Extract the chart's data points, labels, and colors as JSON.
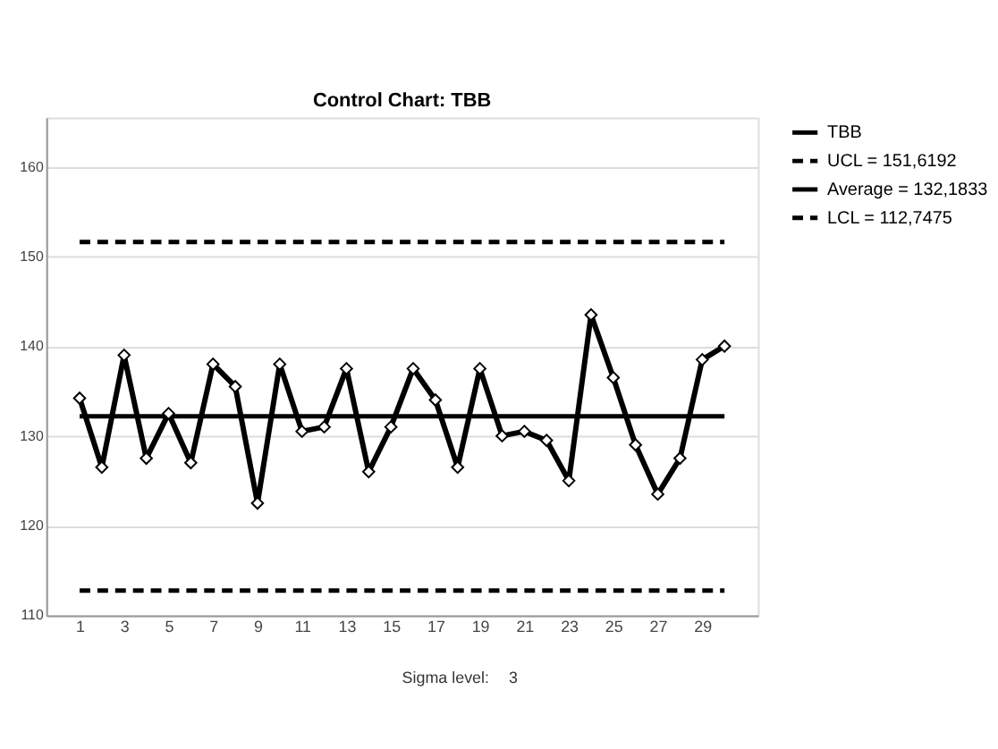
{
  "chart_data": {
    "type": "line",
    "title": "Control Chart: TBB",
    "x": [
      1,
      2,
      3,
      4,
      5,
      6,
      7,
      8,
      9,
      10,
      11,
      12,
      13,
      14,
      15,
      16,
      17,
      18,
      19,
      20,
      21,
      22,
      23,
      24,
      25,
      26,
      27,
      28,
      29,
      30
    ],
    "series": [
      {
        "name": "TBB",
        "color": "#000000",
        "values": [
          134.2,
          126.5,
          139,
          127.5,
          132.5,
          127,
          138,
          135.5,
          122.5,
          138,
          130.5,
          131,
          137.5,
          126,
          131,
          137.5,
          134,
          126.5,
          137.5,
          130,
          130.5,
          129.5,
          125,
          143.5,
          136.5,
          129,
          123.5,
          127.5,
          138.5,
          140
        ]
      }
    ],
    "ref_lines": [
      {
        "axis": "y",
        "value": 151.6192,
        "label": "UCL = 151,6192",
        "color": "#000000",
        "line_style": "dashed"
      },
      {
        "axis": "y",
        "value": 132.1833,
        "label": "Average = 132,1833",
        "color": "#000000",
        "line_style": "solid"
      },
      {
        "axis": "y",
        "value": 112.7475,
        "label": "LCL = 112,7475",
        "color": "#000000",
        "line_style": "dashed"
      }
    ],
    "xlim": [
      -0.5,
      31.5
    ],
    "xticks": [
      1,
      3,
      5,
      7,
      9,
      11,
      13,
      15,
      17,
      19,
      21,
      23,
      25,
      27,
      29
    ],
    "ylim": [
      110,
      165.5
    ],
    "yticks": [
      110,
      120,
      130,
      140,
      150,
      160
    ],
    "grid": "y",
    "legend": "top right",
    "marker": "diamond",
    "line_style": "solid",
    "annotations": [
      "Sigma level:",
      "3"
    ]
  }
}
